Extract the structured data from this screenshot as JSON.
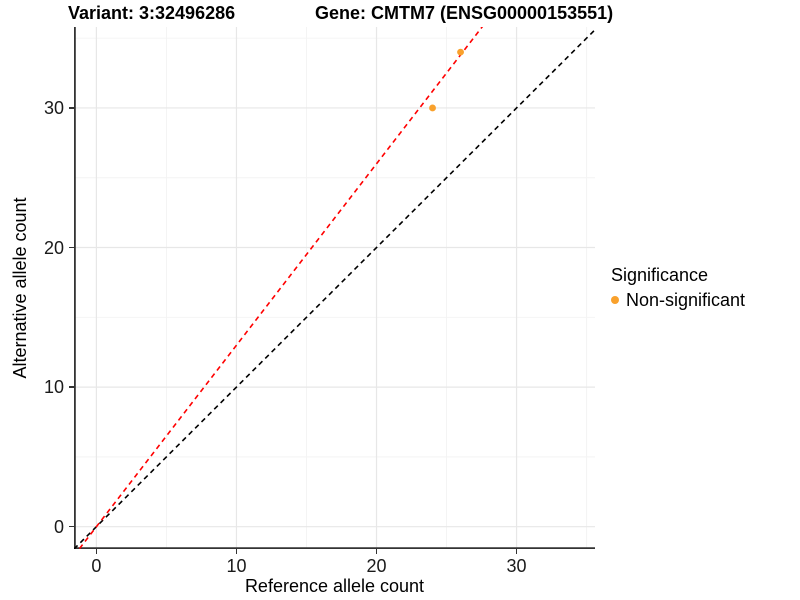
{
  "figure": {
    "title_variant": "Variant: 3:32496286",
    "title_gene": "Gene: CMTM7 (ENSG00000153551)"
  },
  "legend": {
    "title": "Significance",
    "items": [
      {
        "label": "Non-significant",
        "color": "#F9A12C",
        "marker": "dot"
      }
    ]
  },
  "chart_data": {
    "type": "scatter",
    "title_left": "Variant: 3:32496286",
    "title_right": "Gene: CMTM7 (ENSG00000153551)",
    "xlabel": "Reference allele count",
    "ylabel": "Alternative allele count",
    "xlim": [
      -1.6,
      35.6
    ],
    "ylim": [
      -1.6,
      35.8
    ],
    "x_major_ticks": [
      0,
      10,
      20,
      30
    ],
    "x_tick_labels": [
      "0",
      "10",
      "20",
      "30"
    ],
    "x_minor_gridlines": [
      5,
      15,
      25,
      35
    ],
    "y_major_ticks": [
      0,
      10,
      20,
      30
    ],
    "y_tick_labels": [
      "0",
      "10",
      "20",
      "30"
    ],
    "y_minor_gridlines": [
      5,
      15,
      25,
      35
    ],
    "grid": "on",
    "legend_position": "right",
    "series": [
      {
        "name": "Non-significant",
        "color": "#F9A12C",
        "points": [
          {
            "x": 24,
            "y": 30
          },
          {
            "x": 26,
            "y": 34
          }
        ]
      }
    ],
    "reference_lines": [
      {
        "name": "identity-line",
        "slope": 1,
        "intercept": 0,
        "color": "#000000",
        "style": "dashed"
      },
      {
        "name": "fitted-ratio-line",
        "slope": 1.3,
        "intercept": 0,
        "color": "#FF0000",
        "style": "dashed"
      }
    ]
  },
  "colors": {
    "point_orange": "#F9A12C",
    "fitted_line_red": "#FF0000",
    "identity_line_black": "#000000",
    "grid_major": "#E7E7E7",
    "grid_minor": "#F3F3F3",
    "axis_line": "#333333",
    "tick_text": "#1a1a1a"
  }
}
